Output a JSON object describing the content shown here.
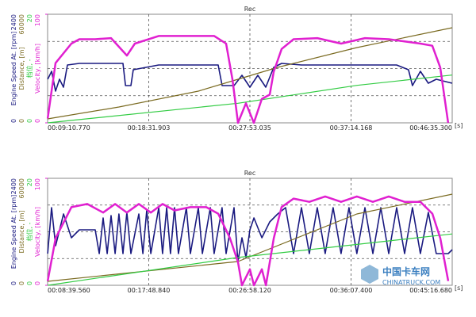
{
  "chart_data": [
    {
      "type": "line",
      "title": "Rec",
      "xlabel": "[s]",
      "xlim": [
        550.77,
        2795.3
      ],
      "xticks": [
        {
          "value": 550.77,
          "label": "00:09:10.770"
        },
        {
          "value": 1111.903,
          "label": "00:18:31.903"
        },
        {
          "value": 1673.035,
          "label": "00:27:53.035"
        },
        {
          "value": 2234.168,
          "label": "00:37:14.168"
        },
        {
          "value": 2795.3,
          "label": "00:46:35.300"
        }
      ],
      "series": [
        {
          "name": "Engine Speed At. [rpm]",
          "color": "#1a1a80",
          "ylim": [
            0,
            2400
          ],
          "ticks": [
            0,
            2400
          ],
          "x": [
            551,
            573,
            595,
            617,
            639,
            661,
            727,
            859,
            969,
            983,
            1013,
            1026,
            1167,
            1343,
            1497,
            1519,
            1585,
            1629,
            1673,
            1717,
            1761,
            1805,
            1849,
            1959,
            2135,
            2311,
            2487,
            2553,
            2575,
            2619,
            2663,
            2707,
            2795
          ],
          "values": [
            964,
            1139,
            701,
            964,
            788,
            1279,
            1314,
            1314,
            1314,
            823,
            823,
            1174,
            1279,
            1279,
            1279,
            823,
            823,
            1051,
            788,
            1051,
            788,
            1226,
            1314,
            1279,
            1279,
            1279,
            1279,
            1174,
            823,
            1139,
            876,
            964,
            876
          ]
        },
        {
          "name": "Distance, [m]",
          "color": "#7a6a20",
          "ylim": [
            0,
            60000
          ],
          "ticks": [
            0,
            60000
          ],
          "x": [
            551,
            947,
            1387,
            1607,
            1827,
            2267,
            2795
          ],
          "values": [
            2190,
            8759,
            17518,
            24088,
            30657,
            41606,
            52555
          ]
        },
        {
          "name": "档位, -",
          "color": "#33cc44",
          "ylim": [
            0,
            20
          ],
          "ticks": [
            0,
            20
          ],
          "x": [
            551,
            1607,
            2267,
            2795
          ],
          "values": [
            0,
            3.6,
            6.9,
            8.8
          ]
        },
        {
          "name": "Velocity, [km/h]",
          "color": "#e020d0",
          "ylim": [
            0,
            100
          ],
          "ticks": [
            0,
            100
          ],
          "x": [
            551,
            595,
            683,
            727,
            815,
            903,
            991,
            1035,
            1167,
            1343,
            1475,
            1541,
            1576,
            1607,
            1651,
            1695,
            1739,
            1783,
            1805,
            1849,
            1915,
            2047,
            2179,
            2311,
            2443,
            2531,
            2619,
            2685,
            2729,
            2773
          ],
          "values": [
            4,
            55,
            73,
            77,
            77,
            78,
            62,
            73,
            80,
            80,
            80,
            73,
            40,
            0,
            18,
            0,
            22,
            26,
            47,
            68,
            77,
            78,
            73,
            78,
            77,
            75,
            73,
            71,
            51,
            0
          ]
        }
      ]
    },
    {
      "type": "line",
      "title": "Rec",
      "xlabel": "[s]",
      "xlim": [
        519.56,
        2716.68
      ],
      "xticks": [
        {
          "value": 519.56,
          "label": "00:08:39.560"
        },
        {
          "value": 1068.84,
          "label": "00:17:48.840"
        },
        {
          "value": 1618.12,
          "label": "00:26:58.120"
        },
        {
          "value": 2167.4,
          "label": "00:36:07.400"
        },
        {
          "value": 2716.68,
          "label": "00:45:16.680"
        }
      ],
      "series": [
        {
          "name": "Engine Speed At. [rpm]",
          "color": "#1a1a80",
          "ylim": [
            0,
            2400
          ],
          "ticks": [
            0,
            2400
          ],
          "x": [
            520,
            541,
            563,
            606,
            649,
            692,
            778,
            800,
            821,
            843,
            864,
            886,
            907,
            929,
            950,
            972,
            1015,
            1037,
            1058,
            1080,
            1123,
            1144,
            1166,
            1187,
            1209,
            1230,
            1273,
            1295,
            1338,
            1360,
            1403,
            1424,
            1467,
            1489,
            1532,
            1553,
            1575,
            1597,
            1618,
            1640,
            1683,
            1726,
            1769,
            1812,
            1855,
            1898,
            1941,
            1984,
            2027,
            2070,
            2113,
            2156,
            2199,
            2243,
            2286,
            2329,
            2372,
            2415,
            2458,
            2501,
            2544,
            2587,
            2630,
            2695,
            2717
          ],
          "values": [
            711,
            1742,
            889,
            1600,
            1067,
            1244,
            1244,
            711,
            1511,
            711,
            1564,
            711,
            1600,
            711,
            1636,
            711,
            1600,
            711,
            1689,
            711,
            1742,
            711,
            1742,
            711,
            1742,
            711,
            1742,
            711,
            1742,
            711,
            1742,
            711,
            1742,
            711,
            1742,
            533,
            1067,
            622,
            1244,
            1511,
            1067,
            1422,
            1600,
            1742,
            711,
            1742,
            711,
            1742,
            711,
            1742,
            711,
            1742,
            711,
            1742,
            711,
            1742,
            711,
            1742,
            711,
            1742,
            711,
            1636,
            711,
            711,
            800
          ]
        },
        {
          "name": "Distance, [m]",
          "color": "#7a6a20",
          "ylim": [
            0,
            60000
          ],
          "ticks": [
            0,
            60000
          ],
          "x": [
            520,
            1553,
            2199,
            2717
          ],
          "values": [
            2222,
            13333,
            40000,
            51111
          ]
        },
        {
          "name": "档位, -",
          "color": "#33cc44",
          "ylim": [
            0,
            20
          ],
          "ticks": [
            0,
            20
          ],
          "x": [
            520,
            1553,
            2717
          ],
          "values": [
            0,
            5.2,
            9.6
          ]
        },
        {
          "name": "Velocity, [km/h]",
          "color": "#e020d0",
          "ylim": [
            0,
            100
          ],
          "ticks": [
            0,
            100
          ],
          "x": [
            520,
            563,
            649,
            735,
            821,
            886,
            950,
            1015,
            1080,
            1144,
            1209,
            1295,
            1381,
            1446,
            1510,
            1553,
            1575,
            1618,
            1640,
            1683,
            1705,
            1748,
            1790,
            1855,
            1941,
            2027,
            2113,
            2199,
            2286,
            2372,
            2458,
            2544,
            2609,
            2652,
            2695
          ],
          "values": [
            4,
            44,
            73,
            76,
            68,
            76,
            68,
            76,
            68,
            76,
            70,
            73,
            73,
            67,
            44,
            22,
            0,
            15,
            0,
            15,
            0,
            44,
            73,
            81,
            78,
            83,
            78,
            83,
            78,
            83,
            78,
            78,
            67,
            44,
            4
          ]
        }
      ]
    }
  ],
  "watermark": {
    "name": "中国卡车网",
    "url": "CHINATRUCK.COM"
  }
}
